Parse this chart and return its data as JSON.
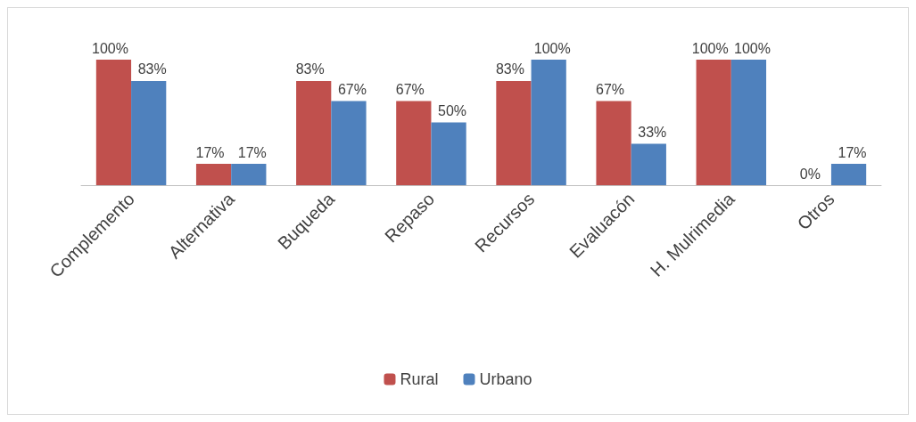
{
  "chart_data": {
    "type": "bar",
    "categories": [
      "Complemento",
      "Alternativa",
      "Buqueda",
      "Repaso",
      "Recursos",
      "Evaluacón",
      "H. Mulrimedia",
      "Otros"
    ],
    "series": [
      {
        "name": "Rural",
        "color": "#c0504d",
        "values": [
          100,
          17,
          83,
          67,
          83,
          67,
          100,
          0
        ],
        "value_labels": [
          "100%",
          "17%",
          "83%",
          "67%",
          "83%",
          "67%",
          "100%",
          "0%"
        ]
      },
      {
        "name": "Urbano",
        "color": "#4f81bd",
        "values": [
          83,
          17,
          67,
          50,
          100,
          33,
          100,
          17
        ],
        "value_labels": [
          "83%",
          "17%",
          "67%",
          "50%",
          "100%",
          "33%",
          "100%",
          "17%"
        ]
      }
    ],
    "legend": "bottom",
    "grid": false
  }
}
